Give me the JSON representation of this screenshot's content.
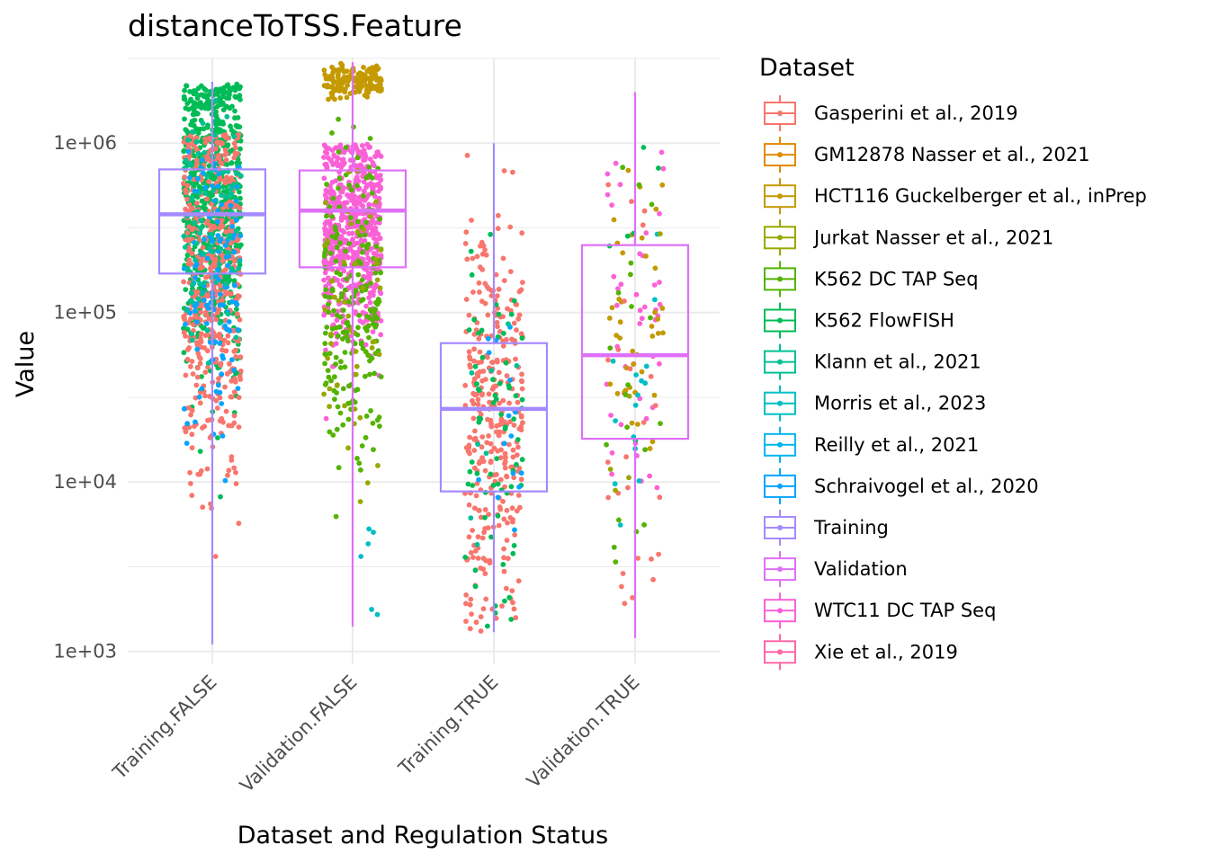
{
  "chart_data": {
    "type": "boxplot",
    "title": "distanceToTSS.Feature",
    "xlabel": "Dataset and Regulation Status",
    "ylabel": "Value",
    "y_scale": "log10",
    "ylim": [
      850,
      3200000
    ],
    "y_ticks": [
      {
        "value": 1000,
        "label": "1e+03"
      },
      {
        "value": 10000,
        "label": "1e+04"
      },
      {
        "value": 100000,
        "label": "1e+05"
      },
      {
        "value": 1000000,
        "label": "1e+06"
      }
    ],
    "grid": true,
    "legend": {
      "title": "Dataset",
      "position": "right",
      "entries": [
        {
          "name": "Gasperini et al., 2019",
          "color": "#F8766D"
        },
        {
          "name": "GM12878 Nasser et al., 2021",
          "color": "#E38900"
        },
        {
          "name": "HCT116 Guckelberger et al., inPrep",
          "color": "#C49A00"
        },
        {
          "name": "Jurkat Nasser et al., 2021",
          "color": "#99A800"
        },
        {
          "name": "K562 DC TAP Seq",
          "color": "#53B400"
        },
        {
          "name": "K562 FlowFISH",
          "color": "#00BC56"
        },
        {
          "name": "Klann et al., 2021",
          "color": "#00C094"
        },
        {
          "name": "Morris et al., 2023",
          "color": "#00BFC4"
        },
        {
          "name": "Reilly et al., 2021",
          "color": "#00B6EB"
        },
        {
          "name": "Schraivogel et al., 2020",
          "color": "#06A4FF"
        },
        {
          "name": "Training",
          "color": "#A58AFF"
        },
        {
          "name": "Validation",
          "color": "#DF70F8"
        },
        {
          "name": "WTC11 DC TAP Seq",
          "color": "#FB61D7"
        },
        {
          "name": "Xie et al., 2019",
          "color": "#FF66A8"
        }
      ]
    },
    "categories": [
      "Training.FALSE",
      "Validation.FALSE",
      "Training.TRUE",
      "Validation.TRUE"
    ],
    "boxes": [
      {
        "category": "Training.FALSE",
        "series": "Training",
        "color": "#A58AFF",
        "q1": 170000,
        "median": 380000,
        "q3": 700000,
        "whisker_low": 1100,
        "whisker_high": 2300000
      },
      {
        "category": "Validation.FALSE",
        "series": "Validation",
        "color": "#DF70F8",
        "q1": 185000,
        "median": 400000,
        "q3": 690000,
        "whisker_low": 1400,
        "whisker_high": 3000000
      },
      {
        "category": "Training.TRUE",
        "series": "Training",
        "color": "#A58AFF",
        "q1": 8800,
        "median": 27000,
        "q3": 66000,
        "whisker_low": 1300,
        "whisker_high": 1000000
      },
      {
        "category": "Validation.TRUE",
        "series": "Validation",
        "color": "#DF70F8",
        "q1": 18000,
        "median": 56000,
        "q3": 250000,
        "whisker_low": 1200,
        "whisker_high": 2000000
      }
    ],
    "points_by_category": [
      {
        "category": "Training.FALSE",
        "groups": [
          {
            "series": "K562 FlowFISH",
            "count": 700,
            "log_center": 5.65,
            "log_sd": 0.48,
            "log_min": 3.4,
            "log_max": 6.35
          },
          {
            "series": "Gasperini et al., 2019",
            "count": 500,
            "log_center": 5.2,
            "log_sd": 0.55,
            "log_min": 3.05,
            "log_max": 6.05
          },
          {
            "series": "Schraivogel et al., 2020",
            "count": 120,
            "log_center": 5.15,
            "log_sd": 0.45,
            "log_min": 3.9,
            "log_max": 6.0
          },
          {
            "series": "Klann et al., 2021",
            "count": 80,
            "log_center": 5.5,
            "log_sd": 0.4,
            "log_min": 4.0,
            "log_max": 6.3
          }
        ]
      },
      {
        "category": "Validation.FALSE",
        "groups": [
          {
            "series": "WTC11 DC TAP Seq",
            "count": 650,
            "log_center": 5.5,
            "log_sd": 0.35,
            "log_min": 3.15,
            "log_max": 6.0
          },
          {
            "series": "K562 DC TAP Seq",
            "count": 220,
            "log_center": 5.1,
            "log_sd": 0.45,
            "log_min": 3.6,
            "log_max": 6.15
          },
          {
            "series": "HCT116 Guckelberger et al., inPrep",
            "count": 160,
            "log_center": 6.36,
            "log_sd": 0.05,
            "log_min": 6.25,
            "log_max": 6.48
          },
          {
            "series": "Jurkat Nasser et al., 2021",
            "count": 50,
            "log_center": 5.0,
            "log_sd": 0.5,
            "log_min": 3.6,
            "log_max": 6.0
          },
          {
            "series": "Morris et al., 2023",
            "count": 6,
            "log_center": 3.5,
            "log_sd": 0.2,
            "log_min": 3.2,
            "log_max": 3.9
          }
        ]
      },
      {
        "category": "Training.TRUE",
        "groups": [
          {
            "series": "Gasperini et al., 2019",
            "count": 330,
            "log_center": 4.4,
            "log_sd": 0.6,
            "log_min": 3.1,
            "log_max": 6.0
          },
          {
            "series": "K562 FlowFISH",
            "count": 70,
            "log_center": 4.3,
            "log_sd": 0.6,
            "log_min": 3.1,
            "log_max": 6.3
          },
          {
            "series": "Schraivogel et al., 2020",
            "count": 15,
            "log_center": 4.5,
            "log_sd": 0.5,
            "log_min": 3.5,
            "log_max": 5.7
          },
          {
            "series": "Klann et al., 2021",
            "count": 8,
            "log_center": 4.4,
            "log_sd": 0.5,
            "log_min": 3.5,
            "log_max": 5.5
          }
        ]
      },
      {
        "category": "Validation.TRUE",
        "groups": [
          {
            "series": "WTC11 DC TAP Seq",
            "count": 45,
            "log_center": 4.9,
            "log_sd": 0.6,
            "log_min": 3.25,
            "log_max": 5.95
          },
          {
            "series": "HCT116 Guckelberger et al., inPrep",
            "count": 40,
            "log_center": 5.0,
            "log_sd": 0.5,
            "log_min": 3.3,
            "log_max": 6.3
          },
          {
            "series": "Gasperini et al., 2019",
            "count": 25,
            "log_center": 4.4,
            "log_sd": 0.6,
            "log_min": 3.2,
            "log_max": 5.9
          },
          {
            "series": "K562 DC TAP Seq",
            "count": 20,
            "log_center": 4.8,
            "log_sd": 0.5,
            "log_min": 3.5,
            "log_max": 5.9
          },
          {
            "series": "Morris et al., 2023",
            "count": 15,
            "log_center": 4.5,
            "log_sd": 0.5,
            "log_min": 3.5,
            "log_max": 5.9
          },
          {
            "series": "K562 FlowFISH",
            "count": 6,
            "log_center": 5.2,
            "log_sd": 0.6,
            "log_min": 4.0,
            "log_max": 6.0
          },
          {
            "series": "Jurkat Nasser et al., 2021",
            "count": 6,
            "log_center": 4.5,
            "log_sd": 0.5,
            "log_min": 3.4,
            "log_max": 5.5
          }
        ]
      }
    ]
  }
}
